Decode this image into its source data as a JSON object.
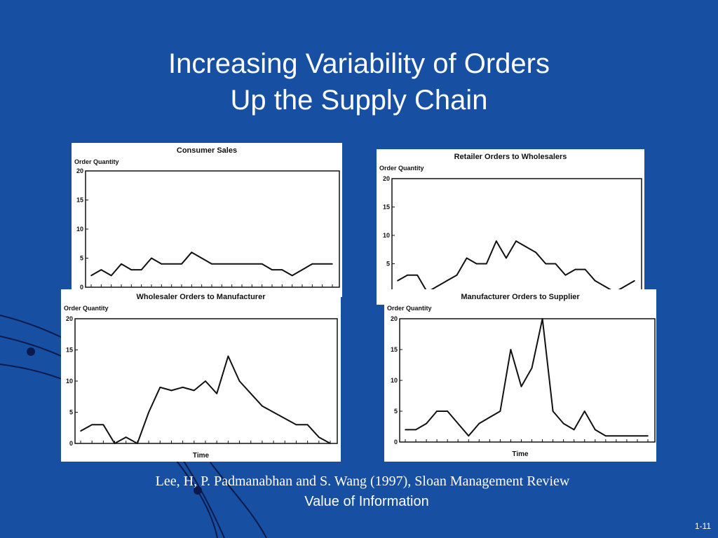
{
  "slide": {
    "title_line1": "Increasing Variability of Orders",
    "title_line2": "Up the Supply Chain",
    "citation": "Lee, H, P. Padmanabhan and S. Wang (1997), Sloan Management Review",
    "subtitle": "Value of Information",
    "page_number": "1-11",
    "background_color": "#1750a3",
    "accent_color": "#1f3f8f"
  },
  "chart_data": [
    {
      "type": "line",
      "title": "Consumer Sales",
      "ylabel": "Order Quantity",
      "xlabel": "",
      "ylim": [
        0,
        20
      ],
      "yticks": [
        0,
        5,
        10,
        15,
        20
      ],
      "values": [
        2,
        3,
        2,
        4,
        3,
        3,
        5,
        4,
        4,
        4,
        6,
        5,
        4,
        4,
        4,
        4,
        4,
        4,
        3,
        3,
        2,
        3,
        4,
        4,
        4
      ]
    },
    {
      "type": "line",
      "title": "Retailer Orders to Wholesalers",
      "ylabel": "Order Quantity",
      "xlabel": "",
      "ylim": [
        0,
        20
      ],
      "yticks": [
        0,
        5,
        10,
        15,
        20
      ],
      "values": [
        2,
        3,
        3,
        0,
        1,
        2,
        3,
        6,
        5,
        5,
        9,
        6,
        9,
        8,
        7,
        5,
        5,
        3,
        4,
        4,
        2,
        1,
        0,
        1,
        2
      ]
    },
    {
      "type": "line",
      "title": "Wholesaler Orders to Manufacturer",
      "ylabel": "Order Quantity",
      "xlabel": "Time",
      "ylim": [
        0,
        20
      ],
      "yticks": [
        0,
        5,
        10,
        15,
        20
      ],
      "values": [
        2,
        3,
        3,
        0,
        1,
        0,
        5,
        9,
        8.5,
        9,
        8.5,
        10,
        8,
        14,
        10,
        8,
        6,
        5,
        4,
        3,
        3,
        1,
        0
      ]
    },
    {
      "type": "line",
      "title": "Manufacturer Orders to Supplier",
      "ylabel": "Order Quantity",
      "xlabel": "Time",
      "ylim": [
        0,
        20
      ],
      "yticks": [
        0,
        5,
        10,
        15,
        20
      ],
      "values": [
        2,
        2,
        3,
        5,
        5,
        3,
        1,
        3,
        4,
        5,
        15,
        9,
        12,
        20,
        5,
        3,
        2,
        5,
        2,
        1,
        1,
        1,
        1,
        1
      ]
    }
  ]
}
